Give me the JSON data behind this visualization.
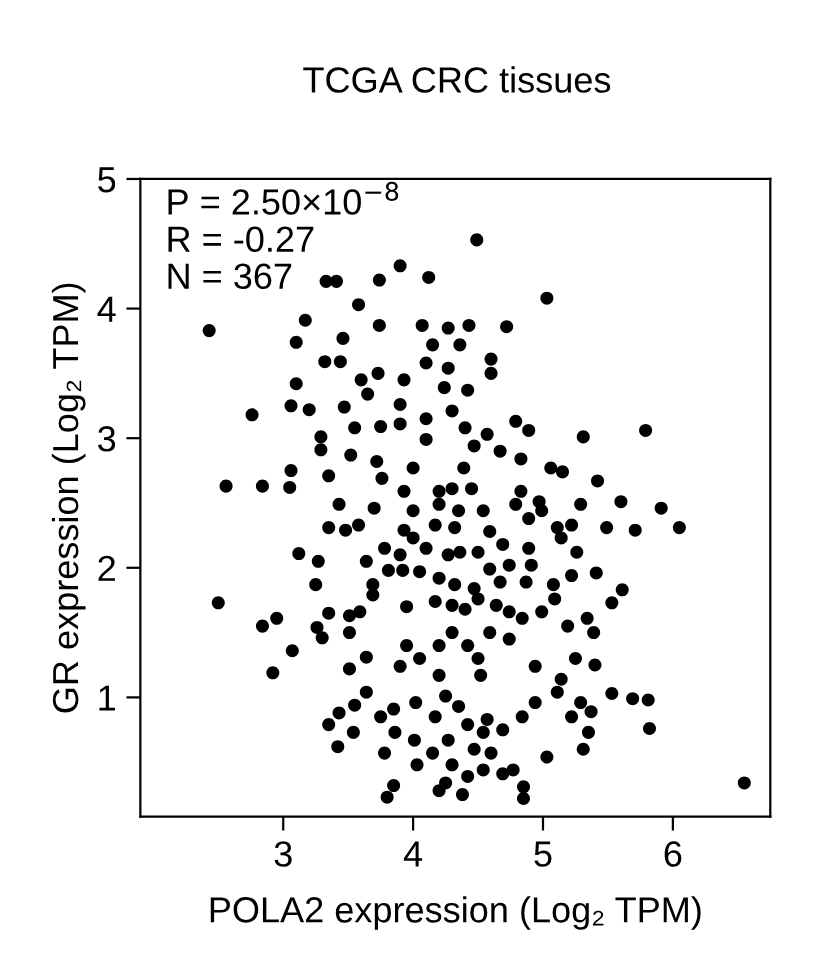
{
  "chart_data": {
    "type": "scatter",
    "title": "TCGA CRC tissues",
    "xlabel": "POLA2 expression (Log₂ TPM)",
    "ylabel": "GR expression (Log₂ TPM)",
    "annotations": [
      "P = 2.50×10$^{−8}$",
      "R = -0.27",
      "N = 367"
    ],
    "xlim": [
      1.9,
      6.75
    ],
    "ylim": [
      0.08,
      5.0
    ],
    "xticks": [
      3,
      4,
      5,
      6
    ],
    "yticks": [
      1,
      2,
      3,
      4,
      5
    ],
    "grid": false,
    "marker": "circle",
    "series": [
      {
        "color": "#000000",
        "x": [
          4.49,
          3.9,
          4.12,
          3.74,
          3.33,
          3.41,
          5.03,
          3.58,
          2.43,
          3.17,
          3.1,
          3.46,
          3.74,
          4.07,
          4.27,
          4.43,
          4.72,
          4.15,
          4.36,
          3.32,
          3.44,
          4.1,
          4.27,
          4.6,
          3.1,
          3.6,
          3.73,
          3.93,
          4.24,
          4.42,
          4.6,
          3.06,
          3.2,
          3.47,
          3.65,
          3.9,
          4.3,
          2.76,
          4.1,
          3.75,
          3.9,
          4.4,
          4.79,
          4.89,
          5.31,
          5.79,
          3.29,
          3.55,
          3.29,
          3.52,
          3.72,
          4.1,
          4.47,
          4.57,
          4.67,
          4.83,
          2.56,
          2.84,
          3.06,
          3.05,
          3.35,
          3.76,
          4.0,
          4.39,
          5.06,
          5.15,
          5.42,
          3.93,
          4.2,
          4.3,
          4.45,
          4.83,
          4.2,
          4.97,
          5.29,
          5.6,
          5.91,
          3.43,
          3.7,
          4.0,
          4.35,
          4.54,
          4.79,
          3.35,
          3.48,
          3.58,
          3.93,
          4.17,
          4.32,
          4.59,
          4.89,
          4.99,
          5.11,
          5.22,
          5.49,
          5.71,
          6.05,
          3.78,
          4.0,
          4.1,
          4.27,
          4.5,
          4.69,
          4.89,
          5.14,
          5.26,
          3.12,
          3.27,
          3.64,
          3.9,
          4.36,
          4.59,
          4.74,
          4.91,
          5.41,
          3.25,
          3.69,
          3.81,
          3.92,
          4.05,
          4.2,
          4.32,
          4.47,
          4.67,
          4.87,
          5.08,
          5.22,
          5.61,
          2.5,
          2.84,
          2.95,
          3.26,
          3.3,
          3.35,
          3.51,
          3.59,
          3.51,
          3.69,
          3.95,
          4.17,
          4.3,
          4.4,
          4.5,
          4.64,
          4.74,
          4.84,
          4.99,
          5.09,
          5.19,
          5.34,
          5.53,
          5.39,
          3.07,
          2.92,
          3.51,
          3.64,
          3.9,
          3.95,
          4.05,
          4.2,
          4.3,
          4.42,
          4.5,
          4.59,
          4.74,
          4.94,
          5.14,
          5.25,
          5.4,
          4.2,
          4.52,
          3.64,
          3.55,
          3.43,
          3.35,
          3.75,
          3.85,
          4.02,
          4.17,
          4.25,
          4.35,
          4.42,
          4.57,
          4.69,
          4.84,
          4.94,
          5.11,
          5.22,
          5.29,
          5.37,
          5.53,
          5.69,
          5.81,
          5.82,
          5.35,
          5.31,
          5.03,
          3.42,
          3.54,
          3.78,
          3.86,
          4.01,
          4.03,
          4.15,
          4.27,
          4.3,
          4.47,
          4.54,
          4.6,
          4.54,
          4.69,
          4.77,
          3.85,
          3.8,
          4.2,
          4.25,
          4.38,
          4.42,
          4.85,
          4.85,
          6.55
        ],
        "values": [
          4.53,
          4.33,
          4.24,
          4.22,
          4.21,
          4.21,
          4.08,
          4.03,
          3.83,
          3.91,
          3.74,
          3.77,
          3.87,
          3.87,
          3.85,
          3.87,
          3.86,
          3.72,
          3.72,
          3.59,
          3.59,
          3.58,
          3.54,
          3.61,
          3.42,
          3.45,
          3.5,
          3.45,
          3.39,
          3.37,
          3.5,
          3.25,
          3.22,
          3.24,
          3.34,
          3.26,
          3.21,
          3.18,
          3.15,
          3.09,
          3.11,
          3.08,
          3.13,
          3.06,
          3.01,
          3.06,
          3.01,
          3.08,
          2.91,
          2.87,
          2.82,
          2.99,
          2.94,
          3.03,
          2.9,
          2.84,
          2.63,
          2.63,
          2.75,
          2.62,
          2.71,
          2.69,
          2.77,
          2.77,
          2.77,
          2.74,
          2.67,
          2.59,
          2.59,
          2.61,
          2.61,
          2.59,
          2.49,
          2.51,
          2.49,
          2.51,
          2.46,
          2.49,
          2.46,
          2.44,
          2.44,
          2.44,
          2.49,
          2.31,
          2.29,
          2.33,
          2.29,
          2.33,
          2.31,
          2.28,
          2.38,
          2.44,
          2.31,
          2.33,
          2.31,
          2.29,
          2.31,
          2.15,
          2.23,
          2.15,
          2.1,
          2.12,
          2.18,
          2.15,
          2.23,
          2.12,
          2.11,
          2.05,
          2.05,
          2.1,
          2.12,
          1.99,
          2.02,
          2.02,
          1.96,
          1.87,
          1.87,
          1.98,
          1.98,
          1.97,
          1.92,
          1.87,
          1.84,
          1.89,
          1.89,
          1.87,
          1.94,
          1.83,
          1.73,
          1.55,
          1.61,
          1.54,
          1.46,
          1.65,
          1.63,
          1.66,
          1.5,
          1.79,
          1.7,
          1.74,
          1.71,
          1.68,
          1.76,
          1.71,
          1.66,
          1.61,
          1.66,
          1.76,
          1.55,
          1.61,
          1.73,
          1.5,
          1.36,
          1.19,
          1.22,
          1.31,
          1.24,
          1.4,
          1.3,
          1.4,
          1.5,
          1.4,
          1.3,
          1.5,
          1.45,
          1.24,
          1.14,
          1.3,
          1.25,
          1.17,
          1.17,
          1.04,
          0.94,
          0.88,
          0.79,
          0.85,
          0.91,
          0.96,
          0.85,
          1.01,
          0.93,
          0.79,
          0.83,
          0.75,
          0.85,
          0.96,
          1.04,
          0.85,
          0.96,
          0.89,
          1.03,
          0.99,
          0.98,
          0.76,
          0.73,
          0.6,
          0.54,
          0.62,
          0.73,
          0.57,
          0.73,
          0.67,
          0.48,
          0.57,
          0.67,
          0.48,
          0.6,
          0.73,
          0.57,
          0.44,
          0.41,
          0.44,
          0.32,
          0.23,
          0.28,
          0.34,
          0.25,
          0.39,
          0.31,
          0.22,
          0.34
        ]
      }
    ]
  }
}
